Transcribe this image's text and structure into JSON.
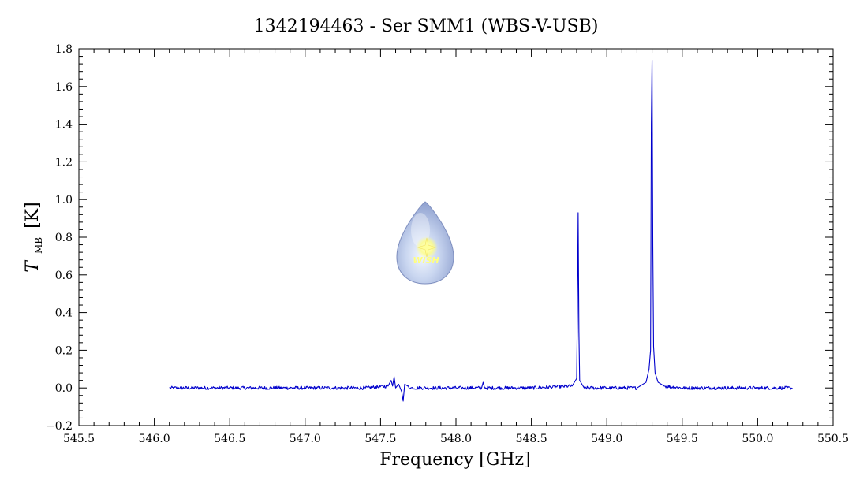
{
  "chart_data": {
    "type": "line",
    "title": "1342194463 - Ser SMM1 (WBS-V-USB)",
    "xlabel": "Frequency [GHz]",
    "ylabel": {
      "symbol": "T",
      "subscript": "MB",
      "unit": "[K]"
    },
    "xlim": [
      545.5,
      550.5
    ],
    "ylim": [
      -0.2,
      1.8
    ],
    "x_ticks": [
      {
        "value": 545.5,
        "label": "545.5"
      },
      {
        "value": 546.0,
        "label": "546.0"
      },
      {
        "value": 546.5,
        "label": "546.5"
      },
      {
        "value": 547.0,
        "label": "547.0"
      },
      {
        "value": 547.5,
        "label": "547.5"
      },
      {
        "value": 548.0,
        "label": "548.0"
      },
      {
        "value": 548.5,
        "label": "548.5"
      },
      {
        "value": 549.0,
        "label": "549.0"
      },
      {
        "value": 549.5,
        "label": "549.5"
      },
      {
        "value": 550.0,
        "label": "550.0"
      },
      {
        "value": 550.5,
        "label": "550.5"
      }
    ],
    "y_ticks": [
      {
        "value": -0.2,
        "label": "−0.2"
      },
      {
        "value": 0.0,
        "label": "0.0"
      },
      {
        "value": 0.2,
        "label": "0.2"
      },
      {
        "value": 0.4,
        "label": "0.4"
      },
      {
        "value": 0.6,
        "label": "0.6"
      },
      {
        "value": 0.8,
        "label": "0.8"
      },
      {
        "value": 1.0,
        "label": "1.0"
      },
      {
        "value": 1.2,
        "label": "1.2"
      },
      {
        "value": 1.4,
        "label": "1.4"
      },
      {
        "value": 1.6,
        "label": "1.6"
      },
      {
        "value": 1.8,
        "label": "1.8"
      }
    ],
    "grid": false,
    "series": [
      {
        "color": "#0000cc",
        "x": [
          546.1,
          546.5,
          547.0,
          547.4,
          547.55,
          547.57,
          547.58,
          547.59,
          547.6,
          547.62,
          547.64,
          547.65,
          547.66,
          547.68,
          547.7,
          548.0,
          548.17,
          548.18,
          548.19,
          548.5,
          548.77,
          548.8,
          548.805,
          548.81,
          548.815,
          548.82,
          548.85,
          549.0,
          549.2,
          549.26,
          549.28,
          549.29,
          549.295,
          549.3,
          549.305,
          549.31,
          549.32,
          549.34,
          549.38,
          549.5,
          550.0,
          550.23
        ],
        "y": [
          0.0,
          0.0,
          0.0,
          0.0,
          0.01,
          0.04,
          0.01,
          0.06,
          0.0,
          0.02,
          -0.02,
          -0.07,
          0.02,
          0.01,
          0.0,
          0.0,
          0.0,
          0.03,
          0.0,
          0.0,
          0.01,
          0.05,
          0.4,
          0.93,
          0.3,
          0.04,
          0.0,
          0.0,
          0.0,
          0.03,
          0.1,
          0.2,
          1.4,
          1.74,
          0.75,
          0.22,
          0.08,
          0.03,
          0.01,
          0.0,
          0.0,
          0.0
        ]
      }
    ]
  },
  "watermark": {
    "text": "WISH"
  }
}
